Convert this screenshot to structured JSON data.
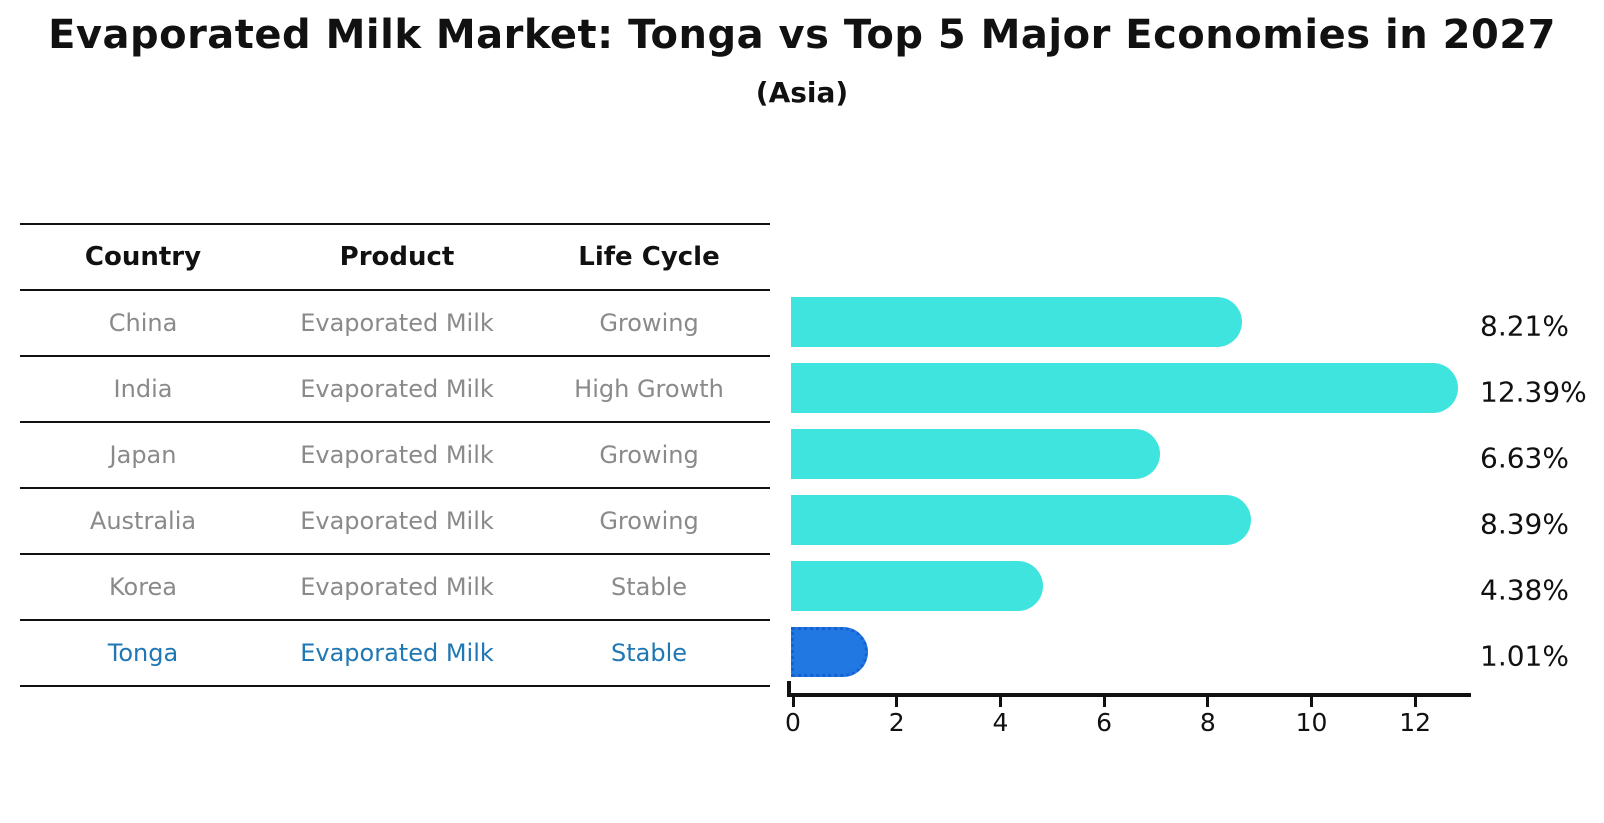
{
  "title": "Evaporated Milk Market: Tonga vs Top 5 Major Economies in 2027",
  "subtitle": "(Asia)",
  "table": {
    "headers": [
      "Country",
      "Product",
      "Life Cycle"
    ],
    "rows": [
      {
        "country": "China",
        "product": "Evaporated Milk",
        "life_cycle": "Growing",
        "highlight": false
      },
      {
        "country": "India",
        "product": "Evaporated Milk",
        "life_cycle": "High Growth",
        "highlight": false
      },
      {
        "country": "Japan",
        "product": "Evaporated Milk",
        "life_cycle": "Growing",
        "highlight": false
      },
      {
        "country": "Australia",
        "product": "Evaporated Milk",
        "life_cycle": "Growing",
        "highlight": false
      },
      {
        "country": "Korea",
        "product": "Evaporated Milk",
        "life_cycle": "Stable",
        "highlight": false
      },
      {
        "country": "Tonga",
        "product": "Evaporated Milk",
        "life_cycle": "Stable",
        "highlight": true
      }
    ]
  },
  "chart_data": {
    "type": "bar",
    "orientation": "horizontal",
    "title": "Evaporated Milk Market: Tonga vs Top 5 Major Economies in 2027",
    "subtitle": "(Asia)",
    "categories": [
      "China",
      "India",
      "Japan",
      "Australia",
      "Korea",
      "Tonga"
    ],
    "values": [
      8.21,
      12.39,
      6.63,
      8.39,
      4.38,
      1.01
    ],
    "value_labels": [
      "8.21%",
      "12.39%",
      "6.63%",
      "8.39%",
      "4.38%",
      "1.01%"
    ],
    "x_ticks": [
      0,
      2,
      4,
      6,
      8,
      10,
      12
    ],
    "xlim": [
      0,
      13.1
    ],
    "grid": false,
    "legend": "none",
    "highlight_category": "Tonga",
    "colors": {
      "bar": "#40E4DE",
      "highlight_bar": "#2278E2",
      "highlight_border": "#1462D2",
      "axis": "#111111",
      "value_label": "#111111",
      "row_text": "#8a8a8a",
      "highlight_text": "#1f77b4"
    }
  }
}
